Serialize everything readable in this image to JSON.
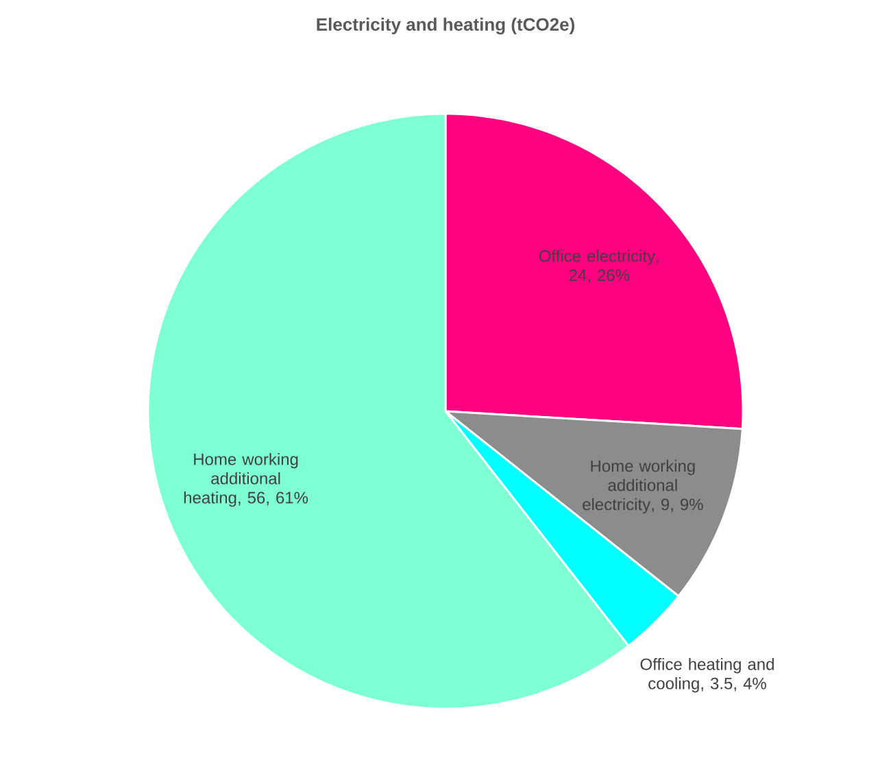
{
  "chart_data": {
    "type": "pie",
    "title": "Electricity and heating (tCO2e)",
    "categories": [
      "Office electricity",
      "Home working additional electricity",
      "Office heating and cooling",
      "Home working additional heating"
    ],
    "values": [
      24,
      9,
      3.5,
      56
    ],
    "value_labels": [
      ", 24, 26%",
      ", 9, 9%",
      ", 3.5, 4%",
      ", 56, 61%"
    ],
    "colors": [
      "#ff0080",
      "#8c8c8c",
      "#00ffff",
      "#7fffd4"
    ],
    "legend": false
  }
}
